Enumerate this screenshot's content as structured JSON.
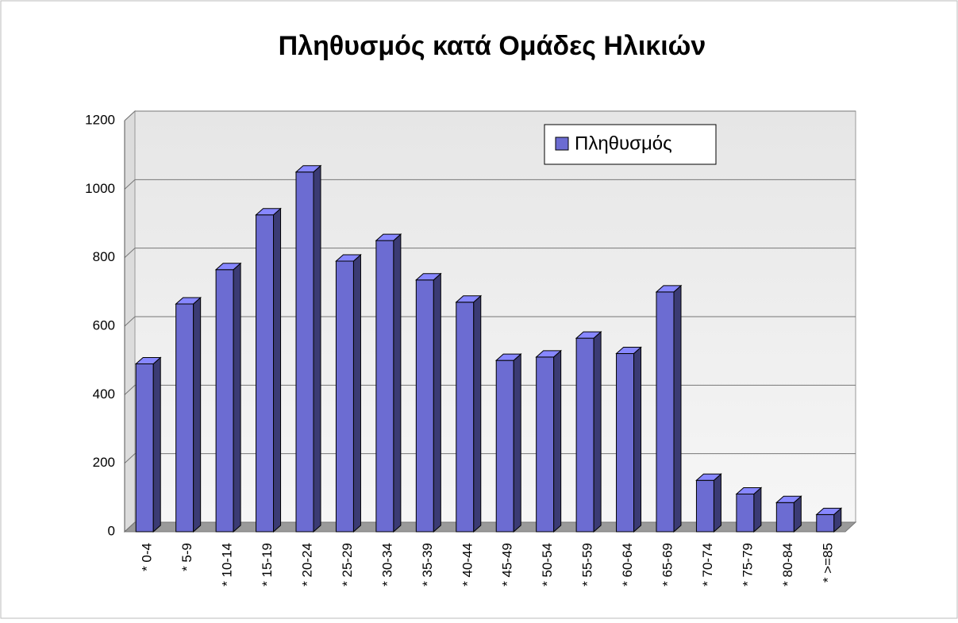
{
  "chart_data": {
    "type": "bar3d",
    "title": "Πληθυσμός κατά Ομάδες Ηλικιών",
    "categories": [
      "* 0-4",
      "* 5-9",
      "* 10-14",
      "* 15-19",
      "* 20-24",
      "* 25-29",
      "* 30-34",
      "* 35-39",
      "* 40-44",
      "* 45-49",
      "* 50-54",
      "* 55-59",
      "* 60-64",
      "* 65-69",
      "* 70-74",
      "* 75-79",
      "* 80-84",
      "* >=85"
    ],
    "series": [
      {
        "name": "Πληθυσμός",
        "color": "#6c6cd2",
        "values": [
          490,
          665,
          765,
          925,
          1050,
          790,
          850,
          735,
          670,
          500,
          510,
          565,
          520,
          700,
          150,
          110,
          85,
          50
        ]
      }
    ],
    "ylim": [
      0,
      1200
    ],
    "yticks": [
      0,
      200,
      400,
      600,
      800,
      1000,
      1200
    ],
    "grid": true,
    "legend": "top-right"
  }
}
